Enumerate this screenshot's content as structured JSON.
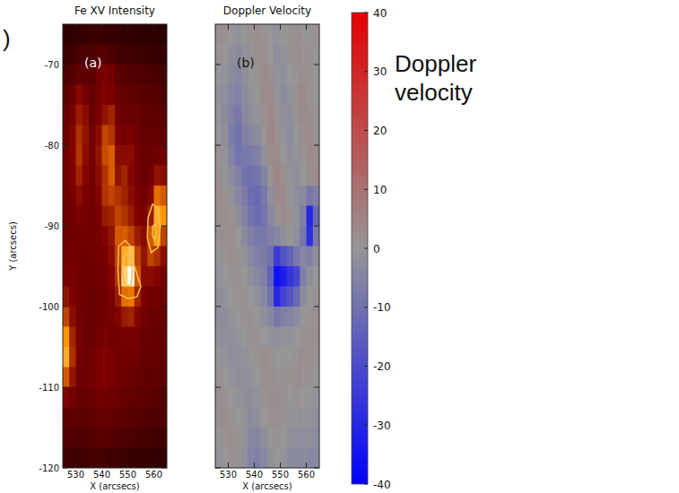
{
  "chart_data": [
    {
      "type": "heatmap",
      "title": "Fe XV Intensity",
      "label": "(a)",
      "xlabel": "X (arcsecs)",
      "ylabel": "Y (arcsecs)",
      "annotations": [
        ")"
      ],
      "color": "red-temperature",
      "xlim": [
        525,
        565
      ],
      "ylim": [
        -120,
        -65
      ],
      "xticks": [
        530,
        540,
        550,
        560
      ],
      "yticks": [
        -70,
        -80,
        -90,
        -100,
        -110,
        -120
      ],
      "clim": [
        0,
        1
      ],
      "x": [
        526.25,
        528.75,
        531.25,
        533.75,
        536.25,
        538.75,
        541.25,
        543.75,
        546.25,
        548.75,
        551.25,
        553.75,
        556.25,
        558.75,
        561.25,
        563.75
      ],
      "y": [
        -66.25,
        -68.75,
        -71.25,
        -73.75,
        -76.25,
        -78.75,
        -81.25,
        -83.75,
        -86.25,
        -88.75,
        -91.25,
        -93.75,
        -96.25,
        -98.75,
        -101.25,
        -103.75,
        -106.25,
        -108.75,
        -111.25,
        -113.75,
        -116.25,
        -118.75
      ],
      "cells": [
        [
          0.12,
          0.13,
          0.14,
          0.15,
          0.16,
          0.16,
          0.15,
          0.14,
          0.14,
          0.13,
          0.13,
          0.12,
          0.12,
          0.12,
          0.11,
          0.11
        ],
        [
          0.16,
          0.17,
          0.19,
          0.2,
          0.2,
          0.22,
          0.22,
          0.2,
          0.18,
          0.17,
          0.17,
          0.16,
          0.16,
          0.15,
          0.15,
          0.14
        ],
        [
          0.2,
          0.22,
          0.26,
          0.25,
          0.24,
          0.3,
          0.32,
          0.3,
          0.24,
          0.22,
          0.22,
          0.21,
          0.2,
          0.2,
          0.19,
          0.18
        ],
        [
          0.24,
          0.28,
          0.35,
          0.3,
          0.26,
          0.3,
          0.34,
          0.32,
          0.27,
          0.26,
          0.25,
          0.24,
          0.23,
          0.22,
          0.22,
          0.2
        ],
        [
          0.27,
          0.32,
          0.4,
          0.36,
          0.28,
          0.32,
          0.38,
          0.42,
          0.3,
          0.28,
          0.28,
          0.27,
          0.25,
          0.25,
          0.24,
          0.23
        ],
        [
          0.28,
          0.34,
          0.45,
          0.38,
          0.3,
          0.36,
          0.5,
          0.46,
          0.33,
          0.3,
          0.32,
          0.28,
          0.26,
          0.27,
          0.26,
          0.25
        ],
        [
          0.3,
          0.34,
          0.46,
          0.36,
          0.3,
          0.38,
          0.52,
          0.56,
          0.36,
          0.36,
          0.36,
          0.3,
          0.27,
          0.28,
          0.3,
          0.3
        ],
        [
          0.3,
          0.33,
          0.42,
          0.34,
          0.3,
          0.36,
          0.46,
          0.56,
          0.38,
          0.42,
          0.34,
          0.3,
          0.28,
          0.3,
          0.38,
          0.36
        ],
        [
          0.29,
          0.31,
          0.36,
          0.32,
          0.3,
          0.34,
          0.46,
          0.5,
          0.46,
          0.42,
          0.36,
          0.32,
          0.3,
          0.34,
          0.6,
          0.55
        ],
        [
          0.28,
          0.3,
          0.32,
          0.31,
          0.3,
          0.32,
          0.4,
          0.42,
          0.5,
          0.46,
          0.4,
          0.34,
          0.32,
          0.4,
          0.75,
          0.7
        ],
        [
          0.28,
          0.29,
          0.3,
          0.3,
          0.3,
          0.31,
          0.34,
          0.38,
          0.55,
          0.56,
          0.5,
          0.4,
          0.36,
          0.55,
          0.72,
          0.5
        ],
        [
          0.3,
          0.3,
          0.3,
          0.29,
          0.3,
          0.3,
          0.32,
          0.36,
          0.5,
          0.75,
          0.8,
          0.5,
          0.38,
          0.5,
          0.45,
          0.36
        ],
        [
          0.32,
          0.31,
          0.3,
          0.29,
          0.29,
          0.3,
          0.3,
          0.34,
          0.46,
          0.85,
          1.0,
          0.55,
          0.36,
          0.36,
          0.34,
          0.3
        ],
        [
          0.38,
          0.33,
          0.3,
          0.29,
          0.28,
          0.29,
          0.3,
          0.32,
          0.4,
          0.6,
          0.62,
          0.42,
          0.32,
          0.3,
          0.3,
          0.28
        ],
        [
          0.5,
          0.36,
          0.3,
          0.28,
          0.28,
          0.29,
          0.3,
          0.31,
          0.34,
          0.4,
          0.42,
          0.34,
          0.3,
          0.28,
          0.28,
          0.27
        ],
        [
          0.7,
          0.42,
          0.31,
          0.28,
          0.28,
          0.3,
          0.32,
          0.3,
          0.3,
          0.32,
          0.32,
          0.3,
          0.28,
          0.27,
          0.27,
          0.26
        ],
        [
          0.75,
          0.45,
          0.3,
          0.28,
          0.3,
          0.32,
          0.34,
          0.32,
          0.3,
          0.3,
          0.3,
          0.29,
          0.27,
          0.26,
          0.26,
          0.25
        ],
        [
          0.55,
          0.38,
          0.29,
          0.28,
          0.3,
          0.33,
          0.34,
          0.32,
          0.3,
          0.29,
          0.28,
          0.27,
          0.26,
          0.25,
          0.25,
          0.24
        ],
        [
          0.34,
          0.3,
          0.27,
          0.26,
          0.28,
          0.3,
          0.3,
          0.29,
          0.28,
          0.27,
          0.26,
          0.25,
          0.24,
          0.24,
          0.23,
          0.22
        ],
        [
          0.26,
          0.25,
          0.24,
          0.24,
          0.25,
          0.26,
          0.27,
          0.26,
          0.25,
          0.24,
          0.23,
          0.22,
          0.22,
          0.21,
          0.2,
          0.2
        ],
        [
          0.22,
          0.21,
          0.2,
          0.21,
          0.22,
          0.23,
          0.23,
          0.22,
          0.21,
          0.2,
          0.2,
          0.19,
          0.18,
          0.18,
          0.17,
          0.17
        ],
        [
          0.17,
          0.16,
          0.16,
          0.17,
          0.18,
          0.18,
          0.18,
          0.17,
          0.17,
          0.16,
          0.15,
          0.15,
          0.14,
          0.14,
          0.13,
          0.13
        ]
      ],
      "contours": [
        [
          [
            546.5,
            -92.5
          ],
          [
            549,
            -91.8
          ],
          [
            551,
            -92.5
          ],
          [
            552.5,
            -95
          ],
          [
            555,
            -97.5
          ],
          [
            553.5,
            -98.8
          ],
          [
            550,
            -99
          ],
          [
            546.8,
            -98.5
          ],
          [
            546.2,
            -95.5
          ]
        ],
        [
          [
            548.5,
            -93.8
          ],
          [
            550.5,
            -93.5
          ],
          [
            551.8,
            -95.5
          ],
          [
            551.3,
            -97.3
          ],
          [
            549,
            -97.5
          ],
          [
            548,
            -95.8
          ]
        ],
        [
          [
            557.8,
            -89
          ],
          [
            559.5,
            -87.3
          ],
          [
            561.5,
            -87.8
          ],
          [
            562.5,
            -90
          ],
          [
            561.5,
            -92.7
          ],
          [
            559,
            -93.3
          ],
          [
            557.5,
            -91.5
          ]
        ],
        [
          [
            559.6,
            -90
          ],
          [
            560.4,
            -89.8
          ],
          [
            560.8,
            -91
          ],
          [
            560.2,
            -91.8
          ],
          [
            559.5,
            -91.2
          ]
        ]
      ]
    },
    {
      "type": "heatmap",
      "title": "Doppler Velocity",
      "label": "(b)",
      "xlabel": "X (arcsecs)",
      "annotations": [
        "Doppler velocity"
      ],
      "color": "blue-gray-red",
      "tick_labels": "x",
      "xlim": [
        525,
        565
      ],
      "ylim": [
        -120,
        -65
      ],
      "xticks": [
        530,
        540,
        550,
        560
      ],
      "yticks": [
        -70,
        -80,
        -90,
        -100,
        -110,
        -120
      ],
      "clim": [
        -40,
        40
      ],
      "cticks": [
        -40,
        -30,
        -20,
        -10,
        0,
        10,
        20,
        30,
        40
      ],
      "x": [
        526.25,
        528.75,
        531.25,
        533.75,
        536.25,
        538.75,
        541.25,
        543.75,
        546.25,
        548.75,
        551.25,
        553.75,
        556.25,
        558.75,
        561.25,
        563.75
      ],
      "y": [
        -66.25,
        -68.75,
        -71.25,
        -73.75,
        -76.25,
        -78.75,
        -81.25,
        -83.75,
        -86.25,
        -88.75,
        -91.25,
        -93.75,
        -96.25,
        -98.75,
        -101.25,
        -103.75,
        -106.25,
        -108.75,
        -111.25,
        -113.75,
        -116.25,
        -118.75
      ],
      "cells": [
        [
          2,
          1,
          0,
          -1,
          0,
          1,
          2,
          1,
          0,
          -1,
          0,
          1,
          2,
          1,
          0,
          1
        ],
        [
          1,
          0,
          -2,
          -3,
          -1,
          1,
          2,
          2,
          0,
          -2,
          -1,
          1,
          2,
          1,
          1,
          0
        ],
        [
          0,
          -1,
          -3,
          -4,
          -2,
          0,
          1,
          3,
          2,
          -1,
          -2,
          0,
          1,
          2,
          1,
          0
        ],
        [
          -1,
          -2,
          -4,
          -6,
          -3,
          -1,
          0,
          3,
          3,
          0,
          -3,
          -1,
          2,
          3,
          1,
          0
        ],
        [
          -1,
          -3,
          -6,
          -8,
          -4,
          -2,
          -1,
          2,
          4,
          1,
          -2,
          -2,
          1,
          3,
          2,
          1
        ],
        [
          0,
          -2,
          -7,
          -10,
          -6,
          -4,
          -3,
          1,
          4,
          2,
          -1,
          -3,
          0,
          2,
          3,
          1
        ],
        [
          1,
          -1,
          -5,
          -9,
          -8,
          -7,
          -6,
          -2,
          3,
          3,
          0,
          -2,
          -1,
          1,
          3,
          2
        ],
        [
          2,
          0,
          -3,
          -6,
          -9,
          -10,
          -9,
          -5,
          1,
          4,
          2,
          -1,
          -2,
          0,
          2,
          3
        ],
        [
          3,
          1,
          -1,
          -4,
          -7,
          -11,
          -12,
          -8,
          -2,
          3,
          3,
          0,
          -2,
          -3,
          -8,
          -6
        ],
        [
          2,
          2,
          1,
          -2,
          -5,
          -9,
          -11,
          -9,
          -4,
          1,
          3,
          1,
          -1,
          -6,
          -30,
          -12
        ],
        [
          1,
          2,
          2,
          0,
          -3,
          -6,
          -8,
          -8,
          -6,
          -4,
          -2,
          0,
          -2,
          -8,
          -28,
          -8
        ],
        [
          0,
          1,
          2,
          1,
          -1,
          -4,
          -6,
          -7,
          -10,
          -24,
          -18,
          -14,
          -8,
          -4,
          -6,
          -2
        ],
        [
          -1,
          0,
          1,
          1,
          0,
          -2,
          -4,
          -6,
          -14,
          -36,
          -32,
          -26,
          -22,
          -6,
          -2,
          0
        ],
        [
          -2,
          -1,
          0,
          1,
          1,
          0,
          -2,
          -4,
          -10,
          -30,
          -22,
          -18,
          -12,
          -3,
          0,
          1
        ],
        [
          -2,
          -2,
          -1,
          0,
          1,
          1,
          0,
          -2,
          -4,
          -8,
          -6,
          -5,
          -3,
          0,
          1,
          2
        ],
        [
          -1,
          -2,
          -2,
          -1,
          0,
          1,
          1,
          0,
          -1,
          -2,
          -1,
          -1,
          0,
          1,
          2,
          2
        ],
        [
          0,
          -1,
          -2,
          -2,
          -1,
          0,
          1,
          2,
          1,
          0,
          0,
          0,
          1,
          2,
          2,
          1
        ],
        [
          1,
          0,
          -1,
          -2,
          -2,
          -1,
          0,
          2,
          2,
          1,
          1,
          1,
          2,
          1,
          1,
          0
        ],
        [
          2,
          1,
          0,
          -1,
          -2,
          -2,
          -1,
          1,
          2,
          2,
          1,
          0,
          1,
          0,
          0,
          -1
        ],
        [
          1,
          2,
          1,
          0,
          -1,
          -3,
          -2,
          0,
          1,
          2,
          1,
          -1,
          -1,
          -1,
          -1,
          -2
        ],
        [
          0,
          1,
          2,
          1,
          -1,
          -4,
          -4,
          -2,
          0,
          1,
          0,
          -2,
          -2,
          -2,
          -2,
          -3
        ],
        [
          -1,
          0,
          1,
          1,
          -2,
          -5,
          -6,
          -4,
          -1,
          0,
          -1,
          -3,
          -3,
          -3,
          -4,
          -4
        ]
      ]
    }
  ]
}
